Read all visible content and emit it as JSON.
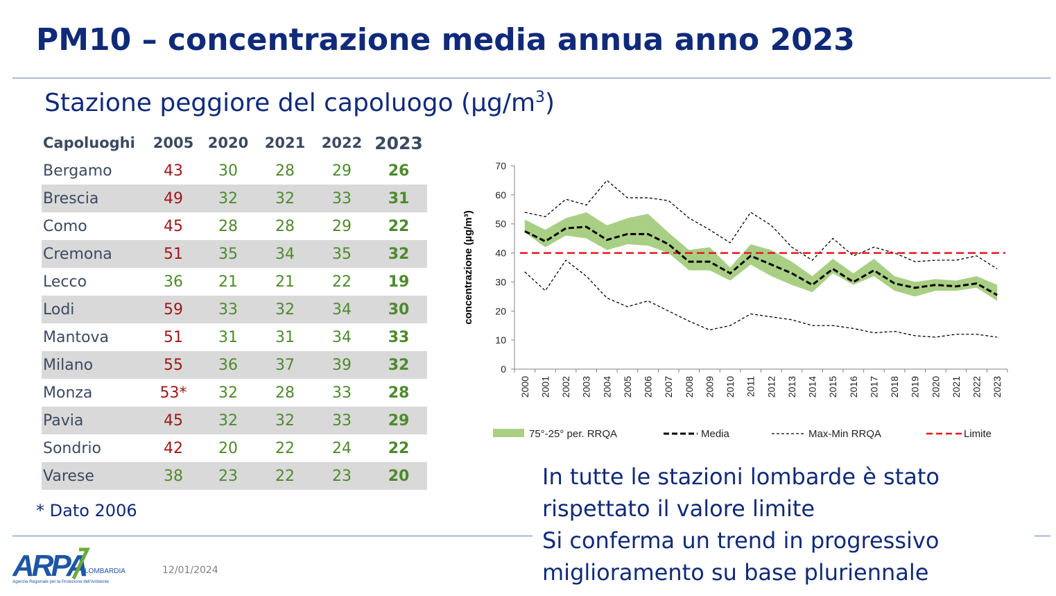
{
  "slide": {
    "title": "PM10 – concentrazione media annua anno 2023",
    "subtitle": "Stazione peggiore del capoluogo (µg/m",
    "subtitle_sup": "3",
    "subtitle_end": ")",
    "note": "* Dato 2006",
    "message_lines": [
      "In tutte le stazioni lombarde è stato",
      "rispettato il valore limite",
      "Si conferma un trend in progressivo",
      "miglioramento su base pluriennale"
    ],
    "date": "12/01/2024",
    "logo": {
      "name": "ARPA",
      "region": "LOMBARDIA",
      "tagline": "Agenzia Regionale per la Protezione dell'Ambiente"
    }
  },
  "table": {
    "headers": [
      "Capoluoghi",
      "2005",
      "2020",
      "2021",
      "2022",
      "2023"
    ],
    "rows": [
      [
        "Bergamo",
        "43",
        "30",
        "28",
        "29",
        "26"
      ],
      [
        "Brescia",
        "49",
        "32",
        "32",
        "33",
        "31"
      ],
      [
        "Como",
        "45",
        "28",
        "28",
        "29",
        "22"
      ],
      [
        "Cremona",
        "51",
        "35",
        "34",
        "35",
        "32"
      ],
      [
        "Lecco",
        "36",
        "21",
        "21",
        "22",
        "19"
      ],
      [
        "Lodi",
        "59",
        "33",
        "32",
        "34",
        "30"
      ],
      [
        "Mantova",
        "51",
        "31",
        "31",
        "34",
        "33"
      ],
      [
        "Milano",
        "55",
        "36",
        "37",
        "39",
        "32"
      ],
      [
        "Monza",
        "53*",
        "32",
        "28",
        "33",
        "28"
      ],
      [
        "Pavia",
        "45",
        "32",
        "32",
        "33",
        "29"
      ],
      [
        "Sondrio",
        "42",
        "20",
        "22",
        "24",
        "22"
      ],
      [
        "Varese",
        "38",
        "23",
        "22",
        "23",
        "20"
      ]
    ],
    "colors": {
      "exceed": "#a01818",
      "ok": "#4e8a2d",
      "shade": "#d9d9d9"
    }
  },
  "chart_data": {
    "type": "line",
    "title": "",
    "xlabel": "",
    "ylabel": "concentrazione (µg/m³)",
    "ylim": [
      0,
      70
    ],
    "yticks": [
      0,
      10,
      20,
      30,
      40,
      50,
      60,
      70
    ],
    "x": [
      "2000",
      "2001",
      "2002",
      "2003",
      "2004",
      "2005",
      "2006",
      "2007",
      "2008",
      "2009",
      "2010",
      "2011",
      "2012",
      "2013",
      "2014",
      "2015",
      "2016",
      "2017",
      "2018",
      "2019",
      "2020",
      "2021",
      "2022",
      "2023"
    ],
    "series": [
      {
        "name": "75°-25° per. RRQA",
        "kind": "band",
        "color": "#a9cf85",
        "upper": [
          51.5,
          48,
          52,
          54,
          49.5,
          52,
          53.5,
          47,
          41,
          42,
          35,
          43,
          41,
          37,
          32,
          38,
          33,
          38,
          32,
          30,
          31,
          30.5,
          32,
          29
        ],
        "lower": [
          47,
          42,
          46,
          45,
          41,
          43,
          42.5,
          40,
          34,
          34,
          30.5,
          36,
          32,
          29,
          26.5,
          33,
          29,
          32,
          27,
          25,
          27,
          27,
          28,
          23.5
        ]
      },
      {
        "name": "Media",
        "kind": "line",
        "dash": "thick",
        "color": "#000000",
        "values": [
          47.5,
          44,
          48.5,
          49,
          44.5,
          46.5,
          46.5,
          43,
          37,
          37,
          33,
          39,
          36,
          33,
          29,
          34.5,
          30,
          34,
          29.5,
          28,
          29,
          28.5,
          29.5,
          25.5
        ]
      },
      {
        "name": "Max-Min RRQA",
        "kind": "line",
        "dash": "thin",
        "color": "#000000",
        "max": [
          54,
          52.5,
          58.5,
          56.5,
          65,
          59,
          59,
          58,
          52,
          48,
          43.5,
          54,
          49.5,
          42,
          37.5,
          45,
          39,
          42,
          40,
          37,
          37.5,
          37.5,
          39,
          34.5
        ],
        "min": [
          33.5,
          27,
          37.5,
          32,
          24.5,
          21.5,
          23.5,
          20,
          16.5,
          13.5,
          15,
          19,
          18,
          17,
          15,
          15,
          14,
          12.5,
          13,
          11.5,
          11,
          12,
          12,
          11
        ]
      },
      {
        "name": "Limite",
        "kind": "line",
        "dash": "red",
        "color": "#e8161b",
        "values": [
          40,
          40,
          40,
          40,
          40,
          40,
          40,
          40,
          40,
          40,
          40,
          40,
          40,
          40,
          40,
          40,
          40,
          40,
          40,
          40,
          40,
          40,
          40,
          40
        ]
      }
    ],
    "legend_position": "bottom",
    "grid": false
  }
}
